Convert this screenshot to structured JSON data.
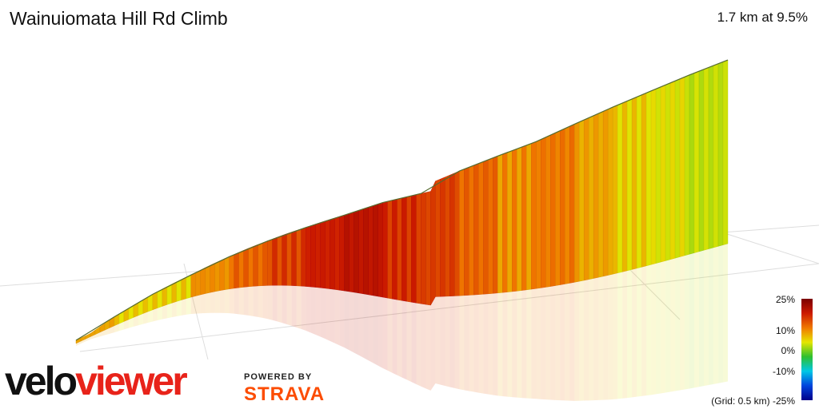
{
  "header": {
    "title": "Wainuiomata Hill Rd Climb",
    "summary": "1.7 km at 9.5%"
  },
  "legend": {
    "labels": [
      "25%",
      "10%",
      "0%",
      "-10%",
      "-25%"
    ],
    "grid_note": "(Grid: 0.5 km)",
    "colors": [
      "#7a0000",
      "#cc1a00",
      "#f07800",
      "#e6e600",
      "#2fbf2f",
      "#00c8e6",
      "#0044dd",
      "#00008a"
    ]
  },
  "branding": {
    "logo_part1": "velo",
    "logo_part2": "viewer",
    "powered_by": "POWERED BY",
    "strava": "STRAVA"
  },
  "chart_data": {
    "type": "area",
    "title": "Wainuiomata Hill Rd Climb",
    "xlabel": "",
    "ylabel": "",
    "x_unit": "km",
    "grid_spacing_km": 0.5,
    "x": [
      0.0,
      0.1,
      0.2,
      0.3,
      0.4,
      0.5,
      0.6,
      0.7,
      0.8,
      0.9,
      1.0,
      1.1,
      1.2,
      1.3,
      1.4,
      1.5,
      1.6,
      1.7
    ],
    "gradient_percent": [
      9,
      8,
      6,
      6,
      9,
      11,
      13,
      15,
      17,
      14,
      13,
      11,
      9,
      10,
      8,
      6,
      5,
      4
    ],
    "colorscale_range": [
      -25,
      25
    ],
    "summary_distance_km": 1.7,
    "summary_avg_gradient_percent": 9.5
  }
}
